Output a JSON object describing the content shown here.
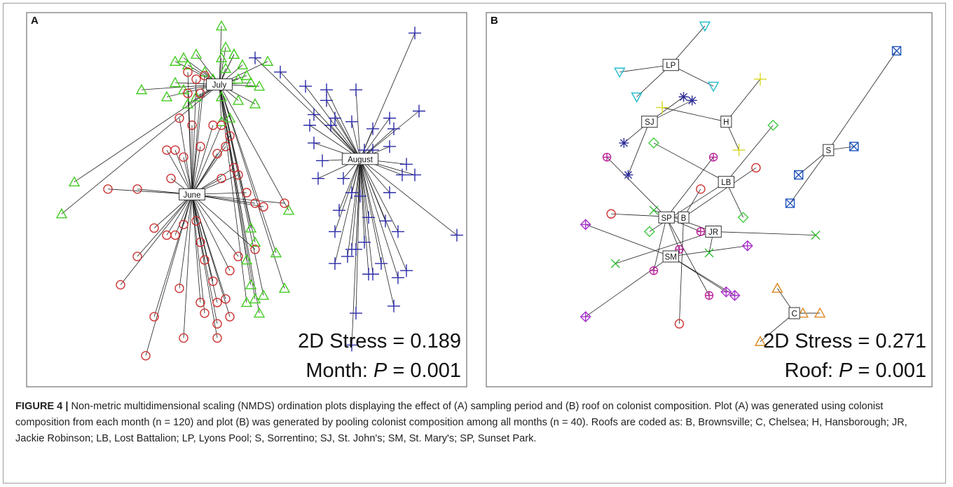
{
  "figure": {
    "caption_label": "FIGURE 4 |",
    "caption_text": " Non-metric multidimensional scaling (NMDS) ordination plots displaying the effect of (A) sampling period and (B) roof on colonist composition. Plot (A) was generated using colonist composition from each month (n = 120) and plot (B) was generated by pooling colonist composition among all months (n = 40). Roofs are coded as: B, Brownsville; C, Chelsea; H, Hansborough; JR, Jackie Robinson; LB, Lost Battalion; LP, Lyons Pool; S, Sorrentino; SJ, St. John's; SM, St. Mary's; SP, Sunset Park."
  },
  "colors": {
    "circle": "#cc3333",
    "triangle_green": "#44cc22",
    "plus_blue": "#2a2aa8",
    "triangle_cyan": "#22bbcc",
    "asterisk_navy": "#2c2c9a",
    "plus_yellow": "#d8d820",
    "diamond_green": "#44cc44",
    "crossbox_blue": "#2255bb",
    "circleplus_magenta": "#bb2299",
    "cross_green": "#33bb33",
    "diamondplus_purple": "#aa33cc",
    "triangle_orange": "#dd8822",
    "spoke": "#222222"
  },
  "chart_data": [
    {
      "type": "scatter",
      "panel_label": "A",
      "stress_text": "2D Stress = 0.189",
      "p_text_prefix": "Month: ",
      "p_text_italic": "P",
      "p_text_suffix": " = 0.001",
      "xlim": [
        0,
        100
      ],
      "ylim": [
        0,
        100
      ],
      "groups": [
        {
          "label": "July",
          "centroid": [
            43.5,
            82.5
          ],
          "marker": "triangle",
          "color": "triangle_green",
          "points": [
            [
              44,
              99
            ],
            [
              45,
              93
            ],
            [
              47,
              91
            ],
            [
              47,
              91
            ],
            [
              44,
              90
            ],
            [
              38,
              91
            ],
            [
              33,
              89
            ],
            [
              35,
              90
            ],
            [
              36,
              88
            ],
            [
              40,
              86
            ],
            [
              42,
              84
            ],
            [
              45,
              87
            ],
            [
              48,
              84
            ],
            [
              51,
              83
            ],
            [
              53,
              82
            ],
            [
              55,
              89
            ],
            [
              49,
              88
            ],
            [
              50,
              85
            ],
            [
              33,
              83
            ],
            [
              35,
              81
            ],
            [
              38,
              79
            ],
            [
              31,
              79
            ],
            [
              25,
              81
            ],
            [
              36,
              77
            ],
            [
              44,
              79
            ],
            [
              48,
              78
            ],
            [
              52,
              77
            ],
            [
              46,
              73
            ],
            [
              44,
              72
            ],
            [
              9,
              55
            ],
            [
              6,
              46
            ],
            [
              60,
              47
            ],
            [
              51,
              42
            ],
            [
              52,
              38
            ],
            [
              50,
              33
            ],
            [
              54,
              23
            ],
            [
              52,
              22
            ],
            [
              59,
              25
            ],
            [
              50,
              21
            ],
            [
              53,
              18
            ],
            [
              51,
              26
            ],
            [
              57,
              35
            ]
          ]
        },
        {
          "label": "June",
          "centroid": [
            37,
            51.5
          ],
          "marker": "circle",
          "color": "circle_red",
          "points": [
            [
              36,
              86
            ],
            [
              40,
              85
            ],
            [
              38,
              84
            ],
            [
              36,
              80
            ],
            [
              39,
              80
            ],
            [
              34,
              73
            ],
            [
              37,
              71
            ],
            [
              42,
              71
            ],
            [
              44,
              71
            ],
            [
              46,
              68
            ],
            [
              39,
              65
            ],
            [
              43,
              63
            ],
            [
              45,
              65
            ],
            [
              31,
              64
            ],
            [
              33,
              64
            ],
            [
              35,
              62
            ],
            [
              47,
              59
            ],
            [
              48,
              57
            ],
            [
              17,
              53
            ],
            [
              24,
              53
            ],
            [
              32,
              56
            ],
            [
              44,
              56
            ],
            [
              50,
              52
            ],
            [
              52,
              49
            ],
            [
              54,
              48
            ],
            [
              59,
              49
            ],
            [
              35,
              43
            ],
            [
              38,
              44
            ],
            [
              33,
              40
            ],
            [
              39,
              38
            ],
            [
              31,
              40
            ],
            [
              28,
              42
            ],
            [
              24,
              34
            ],
            [
              20,
              26
            ],
            [
              40,
              33
            ],
            [
              46,
              30
            ],
            [
              48,
              34
            ],
            [
              52,
              36
            ],
            [
              42,
              27
            ],
            [
              34,
              25
            ],
            [
              43,
              21
            ],
            [
              45,
              22
            ],
            [
              39,
              21
            ],
            [
              40,
              18
            ],
            [
              28,
              17
            ],
            [
              43,
              15
            ],
            [
              46,
              17
            ],
            [
              43,
              11
            ],
            [
              35,
              11
            ],
            [
              26,
              6
            ]
          ]
        },
        {
          "label": "August",
          "centroid": [
            77,
            61.5
          ],
          "marker": "plus",
          "color": "plus_blue",
          "points": [
            [
              90,
              97
            ],
            [
              52,
              90
            ],
            [
              58,
              86
            ],
            [
              64,
              82
            ],
            [
              69,
              78
            ],
            [
              69,
              81
            ],
            [
              76,
              81
            ],
            [
              91,
              75
            ],
            [
              66,
              74
            ],
            [
              65,
              71
            ],
            [
              70,
              71
            ],
            [
              71,
              73
            ],
            [
              75,
              72
            ],
            [
              80,
              70
            ],
            [
              85,
              70
            ],
            [
              84,
              73
            ],
            [
              80,
              64
            ],
            [
              84,
              65
            ],
            [
              78,
              64
            ],
            [
              66,
              66
            ],
            [
              68,
              61
            ],
            [
              88,
              60
            ],
            [
              87,
              57
            ],
            [
              90,
              57
            ],
            [
              67,
              56
            ],
            [
              73,
              56
            ],
            [
              77,
              51
            ],
            [
              84,
              52
            ],
            [
              100,
              40
            ],
            [
              75,
              52
            ],
            [
              72,
              47
            ],
            [
              79,
              45
            ],
            [
              83,
              44
            ],
            [
              86,
              41
            ],
            [
              71,
              41
            ],
            [
              75,
              36
            ],
            [
              82,
              32
            ],
            [
              76,
              36
            ],
            [
              78,
              38
            ],
            [
              71,
              32
            ],
            [
              80,
              29
            ],
            [
              86,
              28
            ],
            [
              88,
              30
            ],
            [
              79,
              29
            ],
            [
              74,
              34
            ],
            [
              85,
              20
            ],
            [
              76,
              18
            ],
            [
              75,
              9
            ]
          ]
        }
      ]
    },
    {
      "type": "scatter",
      "panel_label": "B",
      "stress_text": "2D Stress = 0.271",
      "p_text_prefix": "Roof: ",
      "p_text_italic": "P",
      "p_text_suffix": " = 0.001",
      "xlim": [
        0,
        100
      ],
      "ylim": [
        0,
        100
      ],
      "groups": [
        {
          "label": "LP",
          "centroid": [
            41,
            88
          ],
          "marker": "triangle-down",
          "color": "triangle_cyan",
          "points": [
            [
              49,
              99
            ],
            [
              29,
              86
            ],
            [
              51,
              82
            ],
            [
              33,
              79
            ]
          ]
        },
        {
          "label": "SJ",
          "centroid": [
            36,
            72
          ],
          "marker": "asterisk",
          "color": "asterisk_navy",
          "points": [
            [
              44,
              79
            ],
            [
              46,
              78
            ],
            [
              30,
              66
            ],
            [
              31,
              57
            ]
          ]
        },
        {
          "label": "H",
          "centroid": [
            54,
            72
          ],
          "marker": "plus",
          "color": "plus_yellow",
          "points": [
            [
              62,
              84
            ],
            [
              39,
              76
            ],
            [
              57,
              64
            ]
          ]
        },
        {
          "label": "S",
          "centroid": [
            78,
            64
          ],
          "marker": "crossbox",
          "color": "crossbox_blue",
          "points": [
            [
              94,
              92
            ],
            [
              84,
              65
            ],
            [
              71,
              57
            ],
            [
              69,
              49
            ]
          ]
        },
        {
          "label": "LB",
          "centroid": [
            54,
            55
          ],
          "marker": "diamond",
          "color": "diamond_green",
          "points": [
            [
              65,
              71
            ],
            [
              37,
              66
            ],
            [
              58,
              45
            ],
            [
              36,
              41
            ]
          ]
        },
        {
          "label": "SP",
          "centroid": [
            40,
            45
          ],
          "marker": "circleplus",
          "color": "circleplus_magenta",
          "points": [
            [
              26,
              62
            ],
            [
              51,
              62
            ],
            [
              48,
              41
            ],
            [
              43,
              36
            ],
            [
              37,
              30
            ],
            [
              50,
              23
            ]
          ]
        },
        {
          "label": "B",
          "centroid": [
            44,
            45
          ],
          "marker": "circle",
          "color": "circle_red",
          "points": [
            [
              61,
              59
            ],
            [
              48,
              53
            ],
            [
              27,
              46
            ],
            [
              43,
              15
            ]
          ]
        },
        {
          "label": "JR",
          "centroid": [
            51,
            41
          ],
          "marker": "cross",
          "color": "cross_green",
          "points": [
            [
              75,
              40
            ],
            [
              28,
              32
            ],
            [
              37,
              47
            ],
            [
              50,
              35
            ]
          ]
        },
        {
          "label": "SM",
          "centroid": [
            41,
            34
          ],
          "marker": "diamondplus",
          "color": "diamondplus_purple",
          "points": [
            [
              21,
              43
            ],
            [
              59,
              37
            ],
            [
              21,
              17
            ],
            [
              54,
              24
            ],
            [
              56,
              23
            ]
          ]
        },
        {
          "label": "C",
          "centroid": [
            70,
            18
          ],
          "marker": "triangle",
          "color": "triangle_orange",
          "points": [
            [
              66,
              25
            ],
            [
              76,
              18
            ],
            [
              72,
              18
            ],
            [
              62,
              10
            ]
          ]
        }
      ]
    }
  ]
}
